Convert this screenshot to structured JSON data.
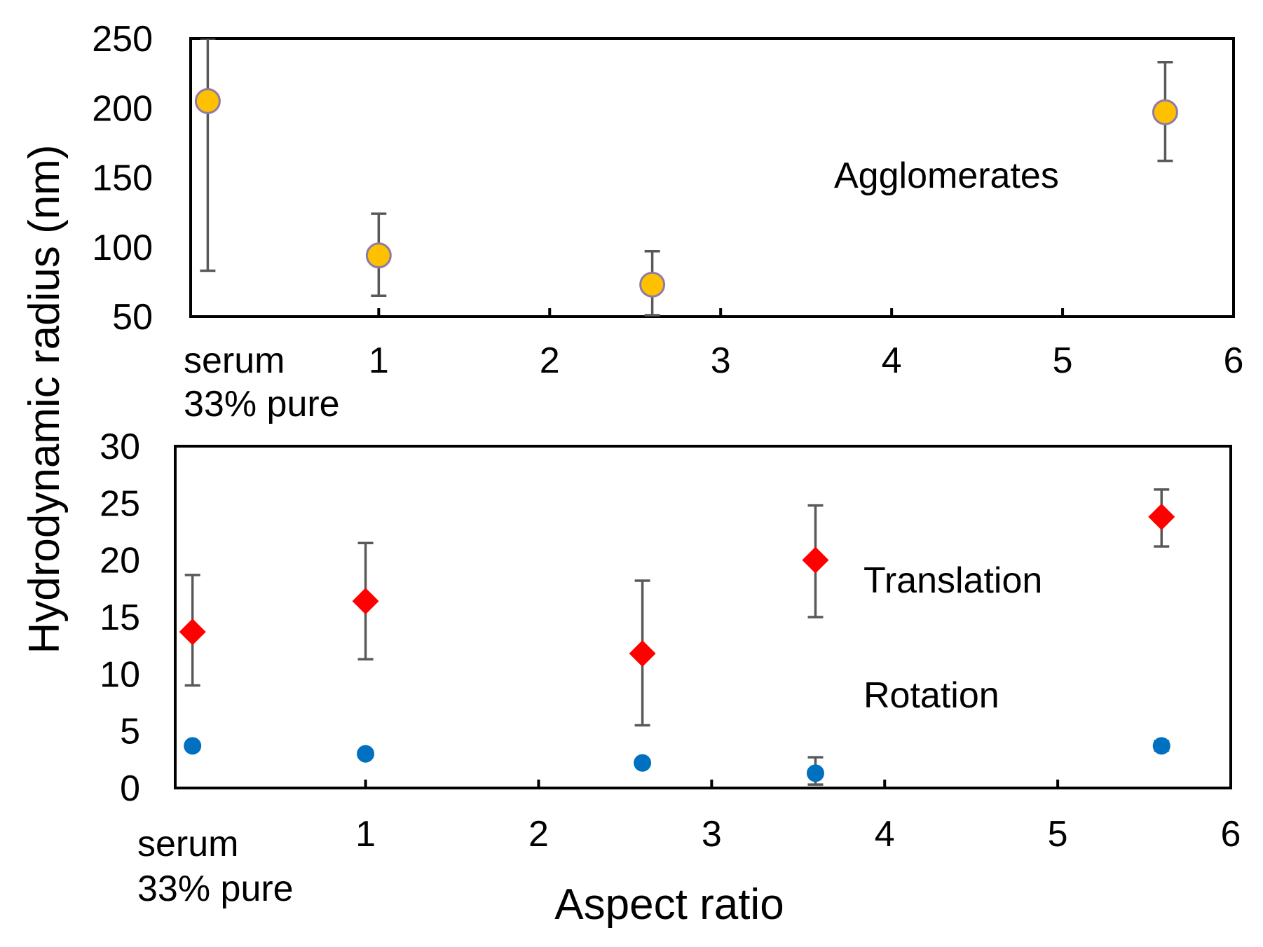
{
  "ylabel": "Hydrodynamic radius (nm)",
  "xlabel": "Aspect ratio",
  "colors": {
    "agglomerates_fill": "#ffc000",
    "agglomerates_edge": "#8e7aa8",
    "translation": "#ff0000",
    "rotation": "#0070c0",
    "errorbar": "#595959",
    "frame": "#000000"
  },
  "chart_data": [
    {
      "type": "scatter",
      "panel": "top",
      "annotation": "Agglomerates",
      "ylim": [
        50,
        250
      ],
      "xlim": [
        -0.1,
        6
      ],
      "yticks": [
        50,
        100,
        150,
        200,
        250
      ],
      "ytick_labels": [
        "50",
        "100",
        "150",
        "200",
        "250"
      ],
      "xticks": [
        1,
        2,
        3,
        4,
        5,
        6
      ],
      "xtick_labels": [
        "1",
        "2",
        "3",
        "4",
        "5",
        "6"
      ],
      "serum_label": [
        "serum",
        "33% pure"
      ],
      "series": [
        {
          "name": "Agglomerates",
          "marker": "circle",
          "points": [
            {
              "label": "serum 33% pure",
              "x": 0.0,
              "y": 205,
              "err_low": 83,
              "err_high": 250
            },
            {
              "x": 1.0,
              "y": 94,
              "err_low": 65,
              "err_high": 124
            },
            {
              "x": 2.6,
              "y": 73,
              "err_low": 51,
              "err_high": 97
            },
            {
              "x": 5.6,
              "y": 197,
              "err_low": 162,
              "err_high": 233
            }
          ]
        }
      ]
    },
    {
      "type": "scatter",
      "panel": "bottom",
      "ylim": [
        0,
        30
      ],
      "xlim": [
        -0.1,
        6
      ],
      "yticks": [
        0,
        5,
        10,
        15,
        20,
        25,
        30
      ],
      "ytick_labels": [
        "0",
        "5",
        "10",
        "15",
        "20",
        "25",
        "30"
      ],
      "xticks": [
        1,
        2,
        3,
        4,
        5,
        6
      ],
      "xtick_labels": [
        "1",
        "2",
        "3",
        "4",
        "5",
        "6"
      ],
      "serum_label": [
        "serum",
        "33% pure"
      ],
      "annotations": [
        "Translation",
        "Rotation"
      ],
      "series": [
        {
          "name": "Translation",
          "marker": "diamond",
          "points": [
            {
              "label": "serum 33% pure",
              "x": 0.0,
              "y": 13.7,
              "err_low": 9.0,
              "err_high": 18.7
            },
            {
              "x": 1.0,
              "y": 16.4,
              "err_low": 11.3,
              "err_high": 21.5
            },
            {
              "x": 2.6,
              "y": 11.8,
              "err_low": 5.5,
              "err_high": 18.2
            },
            {
              "x": 3.6,
              "y": 20.0,
              "err_low": 15.0,
              "err_high": 24.8
            },
            {
              "x": 5.6,
              "y": 23.8,
              "err_low": 21.2,
              "err_high": 26.2
            }
          ]
        },
        {
          "name": "Rotation",
          "marker": "circle",
          "points": [
            {
              "label": "serum 33% pure",
              "x": 0.0,
              "y": 3.7,
              "err_low": 3.7,
              "err_high": 3.7
            },
            {
              "x": 1.0,
              "y": 3.0,
              "err_low": 3.0,
              "err_high": 3.0
            },
            {
              "x": 2.6,
              "y": 2.2,
              "err_low": 2.2,
              "err_high": 2.2
            },
            {
              "x": 3.6,
              "y": 1.3,
              "err_low": 0.3,
              "err_high": 2.7
            },
            {
              "x": 5.6,
              "y": 3.7,
              "err_low": 3.3,
              "err_high": 4.1
            }
          ]
        }
      ]
    }
  ]
}
